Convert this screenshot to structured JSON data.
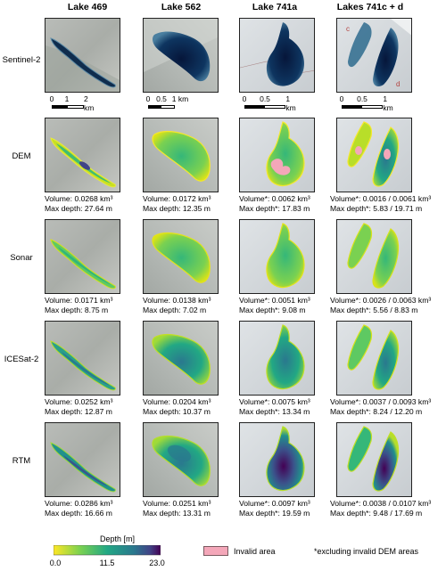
{
  "columns": [
    {
      "title": "Lake 469"
    },
    {
      "title": "Lake 562"
    },
    {
      "title": "Lake 741a"
    },
    {
      "title": "Lakes 741c + d"
    }
  ],
  "rows": [
    {
      "label": "Sentinel-2"
    },
    {
      "label": "DEM"
    },
    {
      "label": "Sonar"
    },
    {
      "label": "ICESat-2"
    },
    {
      "label": "RTM"
    }
  ],
  "scalebars": [
    {
      "labels": [
        "0",
        "1",
        "2 km"
      ]
    },
    {
      "labels": [
        "0",
        "0.5",
        "1 km"
      ]
    },
    {
      "labels": [
        "0",
        "0.5",
        "1 km"
      ]
    },
    {
      "labels": [
        "0",
        "0.5",
        "1 km"
      ]
    }
  ],
  "map_letters": {
    "c": "c",
    "d": "d"
  },
  "captions": [
    [
      {
        "volume": "Volume: 0.0268 km³",
        "depth": "Max depth: 27.64 m"
      },
      {
        "volume": "Volume: 0.0172 km³",
        "depth": "Max depth: 12.35 m"
      },
      {
        "volume": "Volume*: 0.0062 km³",
        "depth": "Max depth*: 17.83 m"
      },
      {
        "volume": "Volume*: 0.0016 / 0.0061 km³",
        "depth": "Max depth*: 5.83 / 19.71 m"
      }
    ],
    [
      {
        "volume": "Volume: 0.0171 km³",
        "depth": "Max depth: 8.75 m"
      },
      {
        "volume": "Volume: 0.0138 km³",
        "depth": "Max depth: 7.02 m"
      },
      {
        "volume": "Volume*: 0.0051 km³",
        "depth": "Max depth*: 9.08 m"
      },
      {
        "volume": "Volume*: 0.0026 / 0.0063 km³",
        "depth": "Max depth*: 5.56 / 8.83 m"
      }
    ],
    [
      {
        "volume": "Volume: 0.0252 km³",
        "depth": "Max depth: 12.87 m"
      },
      {
        "volume": "Volume: 0.0204 km³",
        "depth": "Max depth: 10.37 m"
      },
      {
        "volume": "Volume*: 0.0075 km³",
        "depth": "Max depth*: 13.34 m"
      },
      {
        "volume": "Volume*: 0.0037 / 0.0093 km³",
        "depth": "Max depth*: 8.24 / 12.20 m"
      }
    ],
    [
      {
        "volume": "Volume: 0.0286 km³",
        "depth": "Max depth: 16.66 m"
      },
      {
        "volume": "Volume: 0.0251 km³",
        "depth": "Max depth: 13.31 m"
      },
      {
        "volume": "Volume*: 0.0097 km³",
        "depth": "Max depth*: 19.59 m"
      },
      {
        "volume": "Volume*: 0.0038 / 0.0107 km³",
        "depth": "Max depth*: 9.48 / 17.69 m"
      }
    ]
  ],
  "legend": {
    "title": "Depth [m]",
    "ticks": [
      "0.0",
      "11.5",
      "23.0"
    ],
    "invalid_label": "Invalid area",
    "footnote": "*excluding invalid DEM areas",
    "colormap": [
      "#fde725",
      "#7ad151",
      "#22a884",
      "#2a788e",
      "#414487",
      "#440154"
    ]
  }
}
